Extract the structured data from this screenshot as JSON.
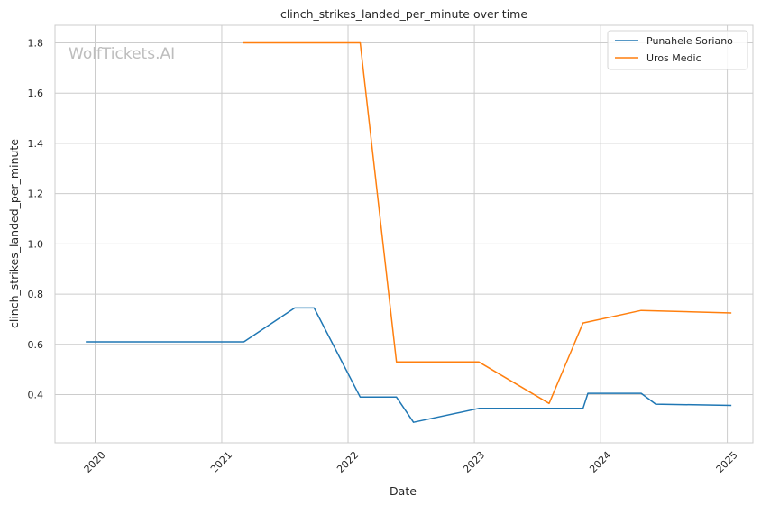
{
  "chart_data": {
    "type": "line",
    "title": "clinch_strikes_landed_per_minute over time",
    "xlabel": "Date",
    "ylabel": "clinch_strikes_landed_per_minute",
    "watermark": "WolfTickets.AI",
    "x_axis_type": "date",
    "xlim": [
      "2019-09-07",
      "2025-03-16"
    ],
    "ylim": [
      0.208,
      1.87
    ],
    "x_ticks": [
      {
        "date": "2020-01-01",
        "label": "2020"
      },
      {
        "date": "2021-01-01",
        "label": "2021"
      },
      {
        "date": "2022-01-01",
        "label": "2022"
      },
      {
        "date": "2023-01-01",
        "label": "2023"
      },
      {
        "date": "2024-01-01",
        "label": "2024"
      },
      {
        "date": "2025-01-01",
        "label": "2025"
      }
    ],
    "y_ticks": [
      {
        "value": 0.4,
        "label": "0.4"
      },
      {
        "value": 0.6,
        "label": "0.6"
      },
      {
        "value": 0.8,
        "label": "0.8"
      },
      {
        "value": 1.0,
        "label": "1.0"
      },
      {
        "value": 1.2,
        "label": "1.2"
      },
      {
        "value": 1.4,
        "label": "1.4"
      },
      {
        "value": 1.6,
        "label": "1.6"
      },
      {
        "value": 1.8,
        "label": "1.8"
      }
    ],
    "grid": true,
    "legend_position": "top-right",
    "series": [
      {
        "name": "Punahele Soriano",
        "color": "#1f77b4",
        "points": [
          {
            "x": "2019-12-07",
            "y": 0.61
          },
          {
            "x": "2021-03-06",
            "y": 0.61
          },
          {
            "x": "2021-07-31",
            "y": 0.745
          },
          {
            "x": "2021-09-25",
            "y": 0.745
          },
          {
            "x": "2022-02-05",
            "y": 0.39
          },
          {
            "x": "2022-05-21",
            "y": 0.39
          },
          {
            "x": "2022-07-09",
            "y": 0.29
          },
          {
            "x": "2023-01-14",
            "y": 0.345
          },
          {
            "x": "2023-11-11",
            "y": 0.345
          },
          {
            "x": "2023-11-25",
            "y": 0.405
          },
          {
            "x": "2024-04-27",
            "y": 0.405
          },
          {
            "x": "2024-06-08",
            "y": 0.362
          },
          {
            "x": "2025-01-11",
            "y": 0.357
          }
        ]
      },
      {
        "name": "Uros Medic",
        "color": "#ff7f0e",
        "points": [
          {
            "x": "2021-03-06",
            "y": 1.8
          },
          {
            "x": "2022-02-05",
            "y": 1.8
          },
          {
            "x": "2022-05-21",
            "y": 0.53
          },
          {
            "x": "2023-01-14",
            "y": 0.53
          },
          {
            "x": "2023-08-05",
            "y": 0.365
          },
          {
            "x": "2023-11-11",
            "y": 0.685
          },
          {
            "x": "2024-04-27",
            "y": 0.735
          },
          {
            "x": "2025-01-11",
            "y": 0.725
          }
        ]
      }
    ]
  }
}
